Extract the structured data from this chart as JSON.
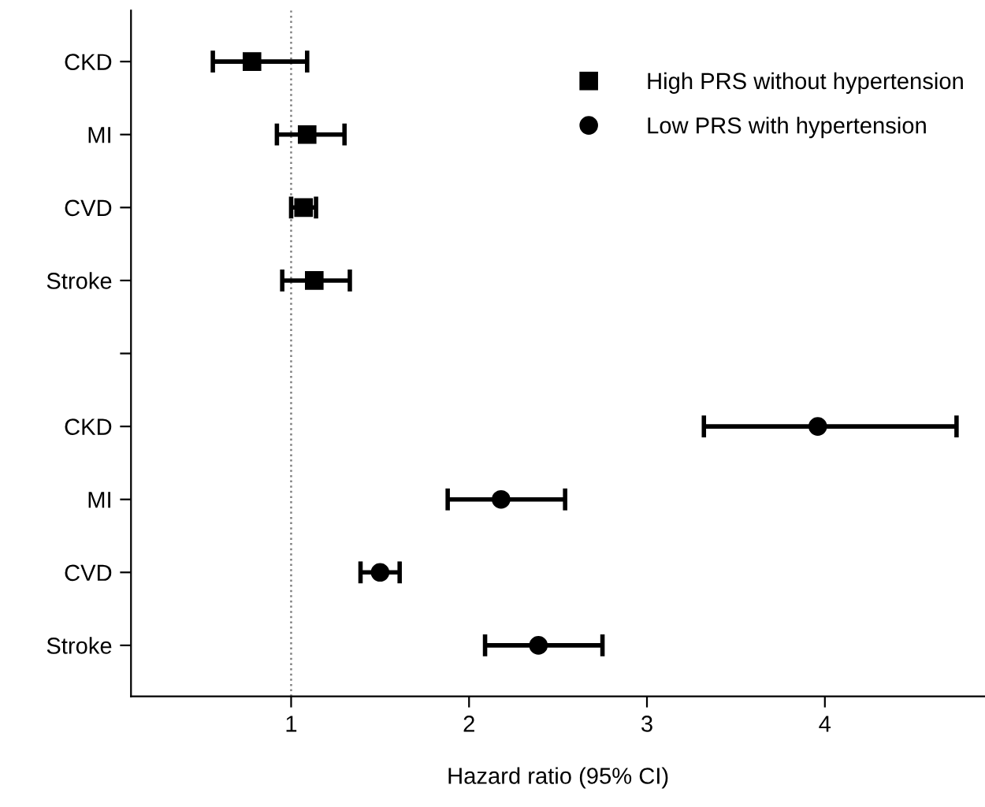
{
  "chart_data": {
    "type": "scatter",
    "orientation": "horizontal",
    "xlabel": "Hazard ratio (95% CI)",
    "categories": [
      "CKD",
      "MI",
      "CVD",
      "Stroke",
      null,
      "CKD",
      "MI",
      "CVD",
      "Stroke"
    ],
    "series": [
      {
        "name": "High PRS without hypertension",
        "color": "#000000",
        "marker": "square",
        "values": [
          0.78,
          1.09,
          1.07,
          1.13,
          null,
          null,
          null,
          null,
          null
        ],
        "errors": [
          [
            0.56,
            1.09
          ],
          [
            0.92,
            1.3
          ],
          [
            1.0,
            1.14
          ],
          [
            0.95,
            1.33
          ],
          null,
          null,
          null,
          null,
          null
        ]
      },
      {
        "name": "Low PRS with hypertension",
        "color": "#000000",
        "marker": "circle",
        "values": [
          null,
          null,
          null,
          null,
          null,
          3.96,
          2.18,
          1.5,
          2.39
        ],
        "errors": [
          null,
          null,
          null,
          null,
          null,
          [
            3.32,
            4.74
          ],
          [
            1.88,
            2.54
          ],
          [
            1.39,
            1.61
          ],
          [
            2.09,
            2.75
          ]
        ]
      }
    ],
    "xlim": [
      0.1,
      4.9
    ],
    "xticks": [
      1,
      2,
      3,
      4
    ],
    "ref_lines": [
      {
        "axis": "x",
        "value": 1,
        "color": "#808080",
        "line_style": "dotted"
      }
    ],
    "legend": "top right",
    "grid": false
  }
}
